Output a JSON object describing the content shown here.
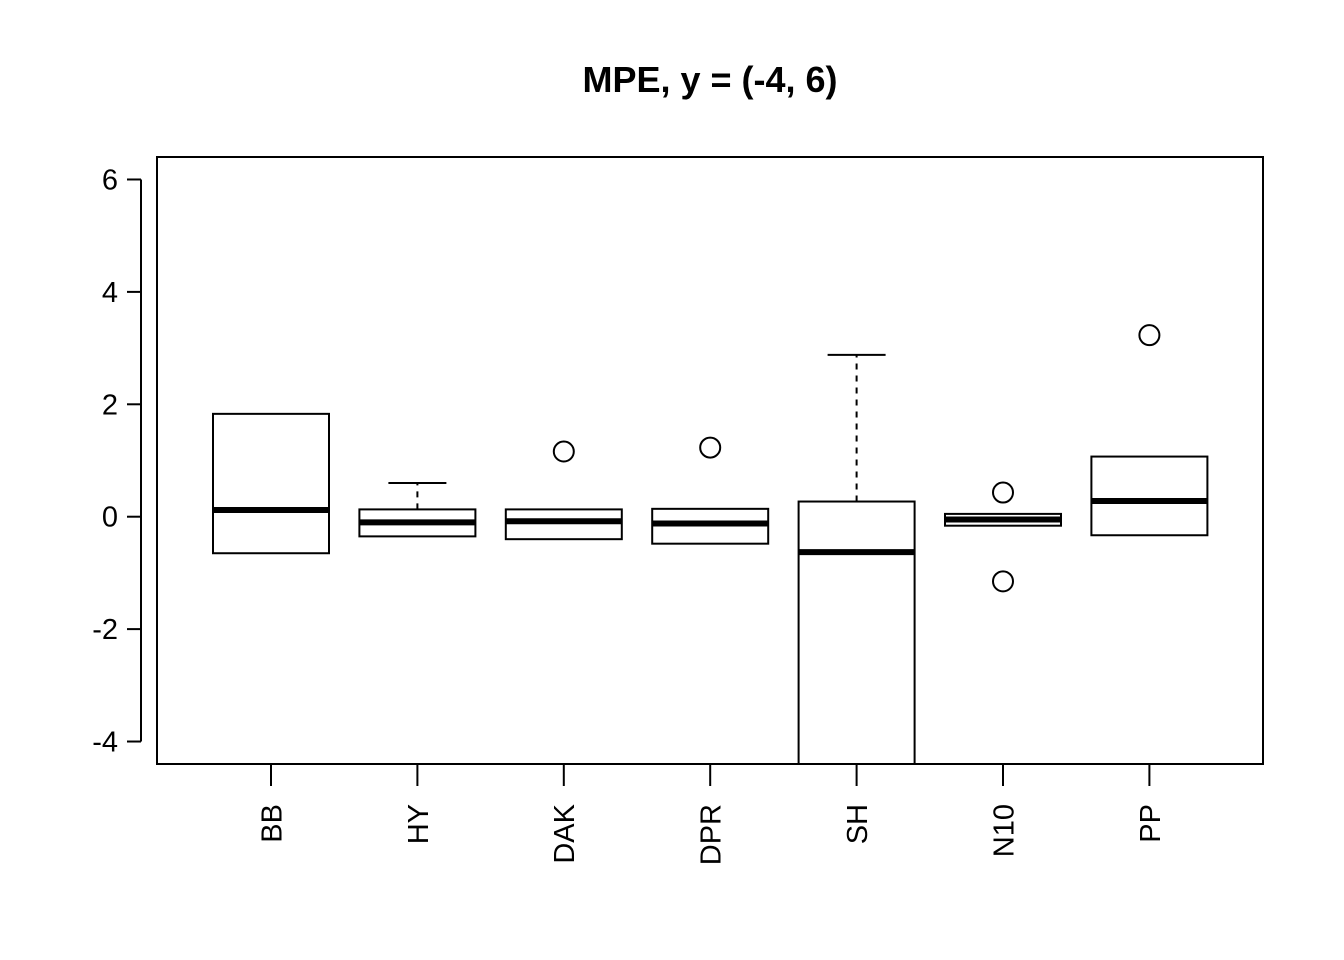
{
  "chart_data": {
    "type": "boxplot",
    "title": "MPE, y = (-4, 6)",
    "xlabel": "",
    "ylabel": "",
    "ylim": [
      -4.4,
      6.4
    ],
    "yticks": [
      -4,
      -2,
      0,
      2,
      4,
      6
    ],
    "ytick_labels": [
      "-4",
      "-2",
      "0",
      "2",
      "4",
      "6"
    ],
    "grid": false,
    "categories": [
      "BB",
      "HY",
      "DAK",
      "DPR",
      "SH",
      "N10",
      "PP"
    ],
    "boxes": [
      {
        "lower_whisker": null,
        "q1": -0.65,
        "median": 0.12,
        "q3": 1.83,
        "upper_whisker": null,
        "outliers": []
      },
      {
        "lower_whisker": null,
        "q1": -0.35,
        "median": -0.1,
        "q3": 0.13,
        "upper_whisker": 0.6,
        "outliers": []
      },
      {
        "lower_whisker": null,
        "q1": -0.4,
        "median": -0.08,
        "q3": 0.13,
        "upper_whisker": null,
        "outliers": [
          1.16
        ]
      },
      {
        "lower_whisker": null,
        "q1": -0.48,
        "median": -0.12,
        "q3": 0.14,
        "upper_whisker": null,
        "outliers": [
          1.23
        ]
      },
      {
        "lower_whisker": null,
        "q1": -4.5,
        "median": -0.63,
        "q3": 0.27,
        "upper_whisker": 2.88,
        "outliers": []
      },
      {
        "lower_whisker": null,
        "q1": -0.16,
        "median": -0.05,
        "q3": 0.05,
        "upper_whisker": null,
        "outliers": [
          0.43,
          -1.15
        ]
      },
      {
        "lower_whisker": null,
        "q1": -0.33,
        "median": 0.28,
        "q3": 1.07,
        "upper_whisker": null,
        "outliers": [
          3.23
        ]
      }
    ]
  }
}
